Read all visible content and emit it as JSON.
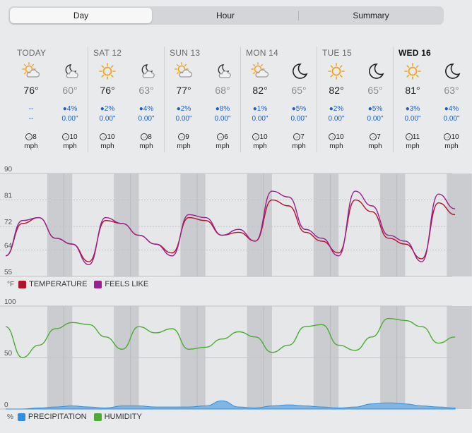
{
  "tabs": [
    {
      "label": "Day",
      "active": true
    },
    {
      "label": "Hour",
      "active": false
    },
    {
      "label": "Summary",
      "active": false
    }
  ],
  "days": [
    {
      "name": "TODAY",
      "current": false,
      "day": {
        "icon": "partly-sunny-icon",
        "temp": "76°",
        "precip": "--",
        "amount": "--",
        "wind": "8",
        "unit": "mph"
      },
      "night": {
        "icon": "partly-cloudy-night-icon",
        "temp": "60°",
        "precip": "4%",
        "amount": "0.00\"",
        "wind": "10",
        "unit": "mph"
      }
    },
    {
      "name": "SAT 12",
      "current": false,
      "day": {
        "icon": "sunny-icon",
        "temp": "76°",
        "precip": "2%",
        "amount": "0.00\"",
        "wind": "10",
        "unit": "mph"
      },
      "night": {
        "icon": "partly-cloudy-night-icon",
        "temp": "63°",
        "precip": "4%",
        "amount": "0.00\"",
        "wind": "8",
        "unit": "mph"
      }
    },
    {
      "name": "SUN 13",
      "current": false,
      "day": {
        "icon": "partly-sunny-icon",
        "temp": "77°",
        "precip": "2%",
        "amount": "0.00\"",
        "wind": "9",
        "unit": "mph"
      },
      "night": {
        "icon": "partly-cloudy-night-icon",
        "temp": "68°",
        "precip": "8%",
        "amount": "0.00\"",
        "wind": "6",
        "unit": "mph"
      }
    },
    {
      "name": "MON 14",
      "current": false,
      "day": {
        "icon": "partly-sunny-icon",
        "temp": "82°",
        "precip": "1%",
        "amount": "0.00\"",
        "wind": "10",
        "unit": "mph"
      },
      "night": {
        "icon": "moon-icon",
        "temp": "65°",
        "precip": "5%",
        "amount": "0.00\"",
        "wind": "7",
        "unit": "mph"
      }
    },
    {
      "name": "TUE 15",
      "current": false,
      "day": {
        "icon": "sunny-icon",
        "temp": "82°",
        "precip": "2%",
        "amount": "0.00\"",
        "wind": "10",
        "unit": "mph"
      },
      "night": {
        "icon": "moon-icon",
        "temp": "65°",
        "precip": "5%",
        "amount": "0.00\"",
        "wind": "7",
        "unit": "mph"
      }
    },
    {
      "name": "WED 16",
      "current": true,
      "day": {
        "icon": "sunny-icon",
        "temp": "81°",
        "precip": "3%",
        "amount": "0.00\"",
        "wind": "11",
        "unit": "mph"
      },
      "night": {
        "icon": "moon-icon",
        "temp": "63°",
        "precip": "4%",
        "amount": "0.00\"",
        "wind": "10",
        "unit": "mph"
      }
    }
  ],
  "colors": {
    "temperature": "#b3122b",
    "feels_like": "#9b1f8e",
    "humidity": "#4aad33",
    "precipitation": "#2f8fe0",
    "sun": "#f2a322",
    "cloud": "#9a9a9e"
  },
  "chart_data": [
    {
      "type": "line",
      "unit": "°F",
      "yticks": [
        "90",
        "81",
        "72",
        "64",
        "55"
      ],
      "ylim": [
        55,
        90
      ],
      "x_hours": [
        0,
        6,
        12,
        18,
        24,
        30,
        36,
        42,
        48,
        54,
        60,
        66,
        72,
        78,
        84,
        90,
        96,
        102,
        108,
        114,
        120,
        126,
        132,
        138,
        144,
        150,
        156,
        162
      ],
      "series": [
        {
          "name": "TEMPERATURE",
          "values": [
            62,
            73,
            75,
            68,
            66,
            60,
            74,
            73,
            69,
            66,
            63,
            75,
            74,
            69,
            70,
            67,
            81,
            79,
            70,
            67,
            63,
            81,
            77,
            68,
            66,
            61,
            80,
            76
          ]
        },
        {
          "name": "FEELS LIKE",
          "values": [
            62,
            74,
            75,
            68,
            66,
            59,
            75,
            73,
            69,
            66,
            62,
            76,
            75,
            69,
            71,
            67,
            84,
            82,
            71,
            68,
            62,
            84,
            79,
            69,
            67,
            60,
            83,
            78
          ]
        }
      ],
      "legend": [
        "TEMPERATURE",
        "FEELS LIKE"
      ]
    },
    {
      "type": "area",
      "unit": "%",
      "yticks": [
        "100",
        "50",
        "0"
      ],
      "ylim": [
        0,
        100
      ],
      "x_hours": [
        0,
        6,
        12,
        18,
        24,
        30,
        36,
        42,
        48,
        54,
        60,
        66,
        72,
        78,
        84,
        90,
        96,
        102,
        108,
        114,
        120,
        126,
        132,
        138,
        144,
        150,
        156,
        162
      ],
      "series": [
        {
          "name": "HUMIDITY",
          "values": [
            80,
            50,
            62,
            78,
            84,
            82,
            70,
            58,
            80,
            74,
            78,
            58,
            60,
            68,
            75,
            70,
            55,
            62,
            80,
            82,
            62,
            57,
            70,
            88,
            86,
            80,
            64,
            70
          ]
        },
        {
          "name": "PRECIPITATION",
          "values": [
            0,
            0,
            1,
            2,
            3,
            2,
            1,
            3,
            3,
            2,
            2,
            2,
            3,
            8,
            2,
            1,
            3,
            4,
            3,
            2,
            1,
            2,
            5,
            6,
            5,
            3,
            2,
            1
          ]
        }
      ],
      "legend": [
        "PRECIPITATION",
        "HUMIDITY"
      ]
    }
  ]
}
